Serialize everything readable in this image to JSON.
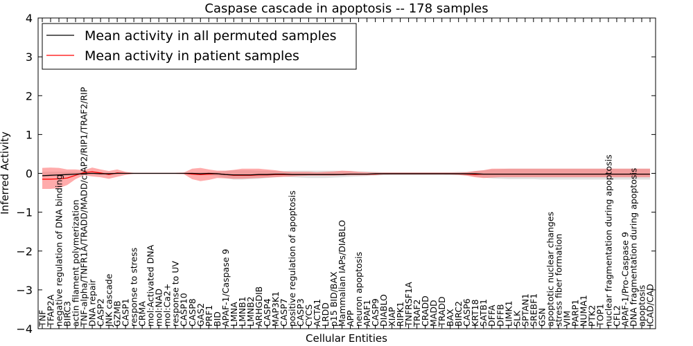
{
  "chart_data": {
    "type": "line",
    "title": "Caspase cascade in apoptosis -- 178 samples",
    "xlabel": "Cellular Entities",
    "ylabel": "Inferred Activity",
    "ylim": [
      -4,
      4
    ],
    "yticks": [
      -4,
      -3,
      -2,
      -1,
      0,
      1,
      2,
      3,
      4
    ],
    "legend_position": "top-left",
    "colors": {
      "permuted": "#000000",
      "patient": "#ff0000",
      "permuted_band": "#c8c8c8",
      "patient_band": "#ff6666"
    },
    "categories": [
      "TNF",
      "TFAP2A",
      "negative regulation of DNA binding",
      "BIRC3",
      "actin filament polymerization",
      "TNF-alpha/TNFR1A/TRADD/MADD/cIAP2/RIP1/TRAF2/RIP",
      "DNA repair",
      "CASP2",
      "JNK cascade",
      "GZMB",
      "CASP1",
      "response to stress",
      "CRMA",
      "mol:Activated DNA",
      "mol:NAD",
      "mol:Ca2+",
      "response to UV",
      "CASP10",
      "CASP8",
      "GAS2",
      "PRF1",
      "BID",
      "APAF-1/Caspase 9",
      "LMNA",
      "LMNB1",
      "LMNB2",
      "ARHGDIB",
      "CASP4",
      "MAP3K1",
      "CASP7",
      "positive regulation of apoptosis",
      "CASP3",
      "CYCS",
      "ACTA1",
      "LRDD",
      "p15 BID/BAX",
      "Mammalian IAPs/DIABLO",
      "APP",
      "neuron apoptosis",
      "APAF1",
      "CASP9",
      "DIABLO",
      "XIAP",
      "RIPK1",
      "TNFRSF1A",
      "TRAF2",
      "CRADD",
      "MADD",
      "TRADD",
      "BAX",
      "BIRC2",
      "CASP6",
      "KRT18",
      "SATB1",
      "DFFA",
      "DFFB",
      "LIMK1",
      "SLK",
      "SPTAN1",
      "SREBF1",
      "GSN",
      "apoptotic nuclear changes",
      "stress fiber formation",
      "VIM",
      "PARP1",
      "NUMA1",
      "PTK2",
      "TOP1",
      "nuclear fragmentation during apoptosis",
      "CFL2",
      "APAF-1/Pro-Caspase 9",
      "DNA fragmentation during apoptosis",
      "apoptosis",
      "ICAD/CAD"
    ],
    "series": [
      {
        "name": "Mean activity in all permuted samples",
        "color": "#000000",
        "values": [
          -0.06,
          -0.05,
          -0.04,
          -0.03,
          -0.02,
          -0.01,
          0,
          -0.01,
          -0.01,
          0,
          0,
          0,
          0,
          0,
          0,
          0,
          0,
          0,
          0,
          -0.01,
          0,
          -0.01,
          -0.03,
          -0.04,
          -0.04,
          -0.04,
          -0.03,
          -0.03,
          -0.02,
          -0.02,
          -0.03,
          -0.03,
          -0.03,
          -0.03,
          -0.03,
          -0.03,
          -0.03,
          -0.02,
          -0.02,
          -0.02,
          -0.01,
          -0.01,
          -0.01,
          -0.01,
          -0.01,
          -0.01,
          -0.01,
          -0.01,
          -0.01,
          -0.01,
          -0.01,
          -0.01,
          -0.01,
          -0.02,
          -0.02,
          -0.02,
          -0.02,
          -0.02,
          -0.02,
          -0.02,
          -0.02,
          -0.02,
          -0.02,
          -0.02,
          -0.02,
          -0.02,
          -0.02,
          -0.02,
          -0.02,
          -0.02,
          -0.02,
          -0.02,
          -0.02,
          -0.02
        ],
        "lower": [
          -0.1,
          -0.09,
          -0.08,
          -0.07,
          -0.05,
          -0.03,
          -0.02,
          -0.03,
          -0.02,
          -0.01,
          -0.01,
          -0.01,
          -0.01,
          -0.01,
          -0.01,
          -0.01,
          -0.01,
          -0.01,
          -0.03,
          -0.05,
          -0.05,
          -0.07,
          -0.12,
          -0.16,
          -0.16,
          -0.15,
          -0.14,
          -0.12,
          -0.1,
          -0.09,
          -0.1,
          -0.11,
          -0.12,
          -0.12,
          -0.12,
          -0.11,
          -0.1,
          -0.09,
          -0.08,
          -0.07,
          -0.06,
          -0.05,
          -0.04,
          -0.04,
          -0.04,
          -0.04,
          -0.04,
          -0.04,
          -0.04,
          -0.05,
          -0.05,
          -0.06,
          -0.08,
          -0.11,
          -0.13,
          -0.14,
          -0.15,
          -0.15,
          -0.15,
          -0.15,
          -0.16,
          -0.16,
          -0.16,
          -0.16,
          -0.16,
          -0.16,
          -0.16,
          -0.16,
          -0.16,
          -0.16,
          -0.16,
          -0.16,
          -0.16,
          -0.16
        ],
        "upper": [
          0.04,
          0.04,
          0.04,
          0.04,
          0.04,
          0.03,
          0.02,
          0.02,
          0.02,
          0.01,
          0.01,
          0.01,
          0.01,
          0.01,
          0.01,
          0.01,
          0.01,
          0.01,
          0.02,
          0.03,
          0.03,
          0.04,
          0.06,
          0.08,
          0.08,
          0.08,
          0.07,
          0.07,
          0.06,
          0.06,
          0.07,
          0.07,
          0.07,
          0.07,
          0.07,
          0.07,
          0.06,
          0.06,
          0.05,
          0.05,
          0.04,
          0.03,
          0.03,
          0.03,
          0.03,
          0.03,
          0.03,
          0.03,
          0.03,
          0.03,
          0.04,
          0.04,
          0.06,
          0.08,
          0.1,
          0.11,
          0.12,
          0.12,
          0.12,
          0.12,
          0.12,
          0.12,
          0.12,
          0.12,
          0.12,
          0.12,
          0.12,
          0.12,
          0.12,
          0.12,
          0.12,
          0.12,
          0.12,
          0.12
        ]
      },
      {
        "name": "Mean activity in patient samples",
        "color": "#ff0000",
        "values": [
          -0.15,
          -0.15,
          -0.14,
          -0.12,
          -0.05,
          0.02,
          0.04,
          0.01,
          -0.03,
          0.01,
          0,
          0,
          0,
          0,
          0,
          0,
          0,
          0,
          -0.02,
          -0.03,
          -0.02,
          -0.01,
          -0.03,
          -0.05,
          -0.05,
          -0.05,
          -0.04,
          -0.04,
          -0.03,
          -0.03,
          -0.03,
          -0.03,
          -0.03,
          -0.03,
          -0.03,
          -0.03,
          -0.03,
          -0.02,
          -0.02,
          -0.02,
          -0.02,
          -0.01,
          -0.01,
          -0.01,
          -0.01,
          -0.01,
          -0.01,
          -0.01,
          -0.01,
          -0.01,
          -0.01,
          -0.02,
          -0.03,
          -0.02,
          -0.02,
          -0.02,
          -0.02,
          -0.02,
          -0.02,
          -0.02,
          -0.02,
          -0.02,
          -0.02,
          -0.02,
          -0.02,
          -0.02,
          -0.02,
          -0.02,
          -0.02,
          -0.02,
          -0.02,
          -0.02,
          -0.02,
          -0.02
        ],
        "lower": [
          -0.4,
          -0.4,
          -0.38,
          -0.3,
          -0.15,
          -0.05,
          -0.08,
          -0.1,
          -0.14,
          -0.09,
          -0.04,
          -0.01,
          -0.01,
          -0.01,
          -0.01,
          -0.01,
          -0.01,
          -0.02,
          -0.15,
          -0.2,
          -0.17,
          -0.12,
          -0.13,
          -0.14,
          -0.14,
          -0.13,
          -0.12,
          -0.11,
          -0.1,
          -0.09,
          -0.08,
          -0.07,
          -0.06,
          -0.06,
          -0.06,
          -0.06,
          -0.05,
          -0.05,
          -0.05,
          -0.05,
          -0.04,
          -0.03,
          -0.03,
          -0.03,
          -0.03,
          -0.03,
          -0.03,
          -0.03,
          -0.03,
          -0.03,
          -0.04,
          -0.06,
          -0.1,
          -0.12,
          -0.11,
          -0.1,
          -0.1,
          -0.1,
          -0.1,
          -0.1,
          -0.1,
          -0.1,
          -0.1,
          -0.1,
          -0.1,
          -0.1,
          -0.1,
          -0.1,
          -0.1,
          -0.1,
          -0.1,
          -0.1,
          -0.1,
          -0.1
        ],
        "upper": [
          0.14,
          0.15,
          0.14,
          0.1,
          0.1,
          0.08,
          0.15,
          0.1,
          0.06,
          0.1,
          0.04,
          0.01,
          0.01,
          0.01,
          0.01,
          0.01,
          0.01,
          0.02,
          0.12,
          0.14,
          0.1,
          0.07,
          0.07,
          0.09,
          0.12,
          0.12,
          0.12,
          0.1,
          0.08,
          0.05,
          0.04,
          0.04,
          0.04,
          0.03,
          0.04,
          0.05,
          0.07,
          0.06,
          0.04,
          0.03,
          0.02,
          0.02,
          0.02,
          0.02,
          0.02,
          0.02,
          0.02,
          0.02,
          0.02,
          0.02,
          0.02,
          0.03,
          0.06,
          0.08,
          0.12,
          0.12,
          0.12,
          0.12,
          0.12,
          0.12,
          0.12,
          0.12,
          0.12,
          0.12,
          0.12,
          0.12,
          0.12,
          0.12,
          0.12,
          0.12,
          0.12,
          0.12,
          0.12,
          0.12
        ]
      }
    ]
  }
}
